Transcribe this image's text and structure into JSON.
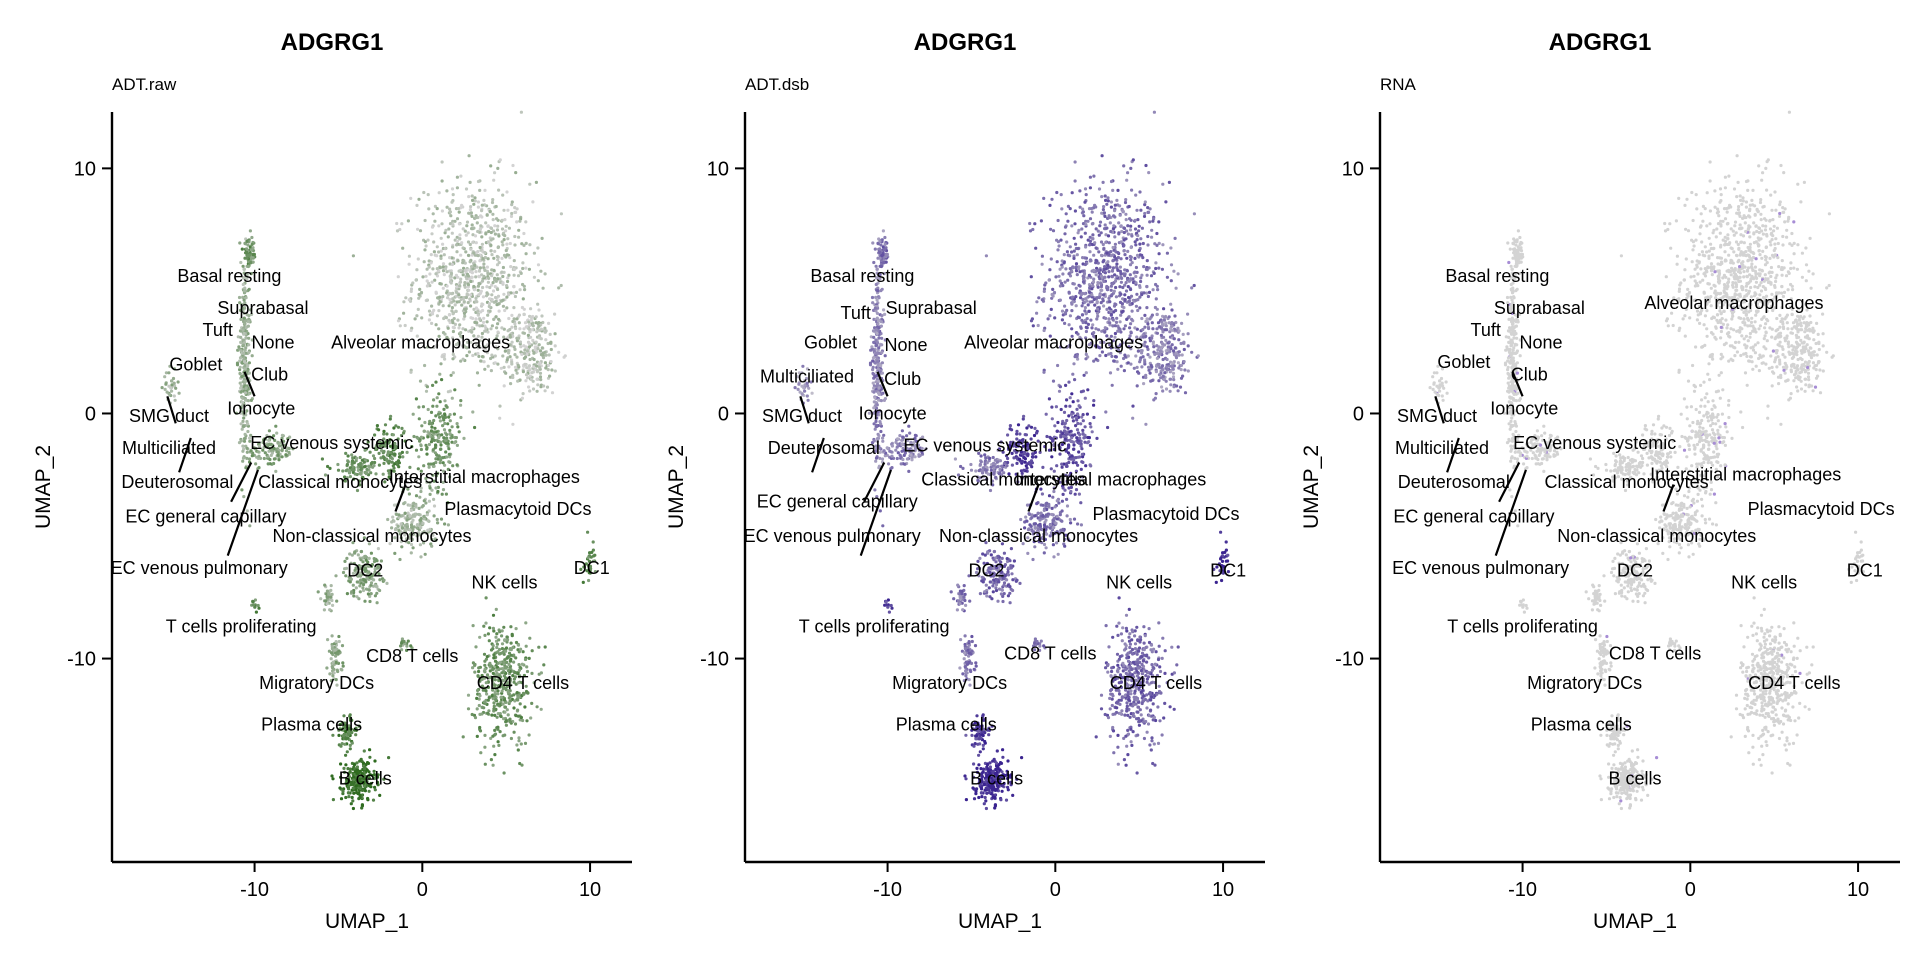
{
  "chart_data": [
    {
      "type": "scatter",
      "title": "ADGRG1",
      "subtitle": "ADT.raw",
      "xlabel": "UMAP_1",
      "ylabel": "UMAP_2",
      "xlim": [
        -18.5,
        12.5
      ],
      "ylim": [
        -18.3,
        12.3
      ],
      "xticks": [
        -10,
        0,
        10
      ],
      "yticks": [
        10,
        0,
        -10
      ],
      "grid": false,
      "color_low": "#d3d3d3",
      "color_high": "#2e6b1f",
      "labels": [
        {
          "text": "Basal resting",
          "x": -11.5,
          "y": 5.6
        },
        {
          "text": "Suprabasal",
          "x": -9.5,
          "y": 4.3
        },
        {
          "text": "Tuft",
          "x": -12.2,
          "y": 3.4
        },
        {
          "text": "None",
          "x": -8.9,
          "y": 2.9
        },
        {
          "text": "Alveolar macrophages",
          "x": -0.1,
          "y": 2.9
        },
        {
          "text": "Goblet",
          "x": -13.5,
          "y": 2.0
        },
        {
          "text": "Club",
          "x": -9.1,
          "y": 1.6
        },
        {
          "text": "SMG duct",
          "x": -15.1,
          "y": -0.1
        },
        {
          "text": "Ionocyte",
          "x": -9.6,
          "y": 0.2
        },
        {
          "text": "Multiciliated",
          "x": -15.1,
          "y": -1.4
        },
        {
          "text": "EC venous systemic",
          "x": -5.4,
          "y": -1.2
        },
        {
          "text": "Deuterosomal",
          "x": -14.6,
          "y": -2.8
        },
        {
          "text": "Classical monocytes",
          "x": -4.9,
          "y": -2.8
        },
        {
          "text": "Interstitial macrophages",
          "x": 3.7,
          "y": -2.6
        },
        {
          "text": "Plasmacytoid DCs",
          "x": 5.7,
          "y": -3.9
        },
        {
          "text": "EC general capillary",
          "x": -12.9,
          "y": -4.2
        },
        {
          "text": "Non-classical monocytes",
          "x": -3.0,
          "y": -5.0
        },
        {
          "text": "EC venous pulmonary",
          "x": -13.3,
          "y": -6.3
        },
        {
          "text": "DC2",
          "x": -3.4,
          "y": -6.4
        },
        {
          "text": "DC1",
          "x": 10.1,
          "y": -6.3
        },
        {
          "text": "NK cells",
          "x": 4.9,
          "y": -6.9
        },
        {
          "text": "T cells proliferating",
          "x": -10.8,
          "y": -8.7
        },
        {
          "text": "CD8 T cells",
          "x": -0.6,
          "y": -9.9
        },
        {
          "text": "Migratory DCs",
          "x": -6.3,
          "y": -11.0
        },
        {
          "text": "CD4 T cells",
          "x": 6.0,
          "y": -11.0
        },
        {
          "text": "Plasma cells",
          "x": -6.6,
          "y": -12.7
        },
        {
          "text": "B cells",
          "x": -3.4,
          "y": -14.9
        }
      ]
    },
    {
      "type": "scatter",
      "title": "ADGRG1",
      "subtitle": "ADT.dsb",
      "xlabel": "UMAP_1",
      "ylabel": "UMAP_2",
      "xlim": [
        -18.5,
        12.5
      ],
      "ylim": [
        -18.3,
        12.3
      ],
      "xticks": [
        -10,
        0,
        10
      ],
      "yticks": [
        10,
        0,
        -10
      ],
      "grid": false,
      "color_low": "#d3d3d3",
      "color_high": "#3a2390",
      "labels": [
        {
          "text": "Basal resting",
          "x": -11.5,
          "y": 5.6
        },
        {
          "text": "Suprabasal",
          "x": -7.4,
          "y": 4.3
        },
        {
          "text": "Tuft",
          "x": -11.9,
          "y": 4.1
        },
        {
          "text": "Goblet",
          "x": -13.4,
          "y": 2.9
        },
        {
          "text": "None",
          "x": -8.9,
          "y": 2.8
        },
        {
          "text": "Alveolar macrophages",
          "x": -0.1,
          "y": 2.9
        },
        {
          "text": "Multiciliated",
          "x": -14.8,
          "y": 1.5
        },
        {
          "text": "Club",
          "x": -9.1,
          "y": 1.4
        },
        {
          "text": "SMG duct",
          "x": -15.1,
          "y": -0.1
        },
        {
          "text": "Ionocyte",
          "x": -9.7,
          "y": 0.0
        },
        {
          "text": "EC venous systemic",
          "x": -4.2,
          "y": -1.3
        },
        {
          "text": "Deuterosomal",
          "x": -13.8,
          "y": -1.4
        },
        {
          "text": "Classical monocytes",
          "x": -3.1,
          "y": -2.7
        },
        {
          "text": "Interstitial macrophages",
          "x": 3.3,
          "y": -2.7
        },
        {
          "text": "Plasmacytoid DCs",
          "x": 6.6,
          "y": -4.1
        },
        {
          "text": "EC general capillary",
          "x": -13.0,
          "y": -3.6
        },
        {
          "text": "EC venous pulmonary",
          "x": -13.3,
          "y": -5.0
        },
        {
          "text": "Non-classical monocytes",
          "x": -1.0,
          "y": -5.0
        },
        {
          "text": "DC2",
          "x": -4.1,
          "y": -6.4
        },
        {
          "text": "DC1",
          "x": 10.3,
          "y": -6.4
        },
        {
          "text": "NK cells",
          "x": 5.0,
          "y": -6.9
        },
        {
          "text": "T cells proliferating",
          "x": -10.8,
          "y": -8.7
        },
        {
          "text": "CD8 T cells",
          "x": -0.3,
          "y": -9.8
        },
        {
          "text": "Migratory DCs",
          "x": -6.3,
          "y": -11.0
        },
        {
          "text": "CD4 T cells",
          "x": 6.0,
          "y": -11.0
        },
        {
          "text": "Plasma cells",
          "x": -6.5,
          "y": -12.7
        },
        {
          "text": "B cells",
          "x": -3.5,
          "y": -14.9
        }
      ]
    },
    {
      "type": "scatter",
      "title": "ADGRG1",
      "subtitle": "RNA",
      "xlabel": "UMAP_1",
      "ylabel": "UMAP_2",
      "xlim": [
        -18.5,
        12.5
      ],
      "ylim": [
        -18.3,
        12.3
      ],
      "xticks": [
        -10,
        0,
        10
      ],
      "yticks": [
        10,
        0,
        -10
      ],
      "grid": false,
      "color_low": "#d3d3d3",
      "color_high": "#8a5fd6",
      "labels": [
        {
          "text": "Basal resting",
          "x": -11.5,
          "y": 5.6
        },
        {
          "text": "Suprabasal",
          "x": -9.0,
          "y": 4.3
        },
        {
          "text": "Alveolar macrophages",
          "x": 2.6,
          "y": 4.5
        },
        {
          "text": "Tuft",
          "x": -12.2,
          "y": 3.4
        },
        {
          "text": "None",
          "x": -8.9,
          "y": 2.9
        },
        {
          "text": "Goblet",
          "x": -13.5,
          "y": 2.1
        },
        {
          "text": "Club",
          "x": -9.6,
          "y": 1.6
        },
        {
          "text": "SMG duct",
          "x": -15.1,
          "y": -0.1
        },
        {
          "text": "Ionocyte",
          "x": -9.9,
          "y": 0.2
        },
        {
          "text": "Multiciliated",
          "x": -14.8,
          "y": -1.4
        },
        {
          "text": "EC venous systemic",
          "x": -5.7,
          "y": -1.2
        },
        {
          "text": "Deuterosomal",
          "x": -14.1,
          "y": -2.8
        },
        {
          "text": "Classical monocytes",
          "x": -3.8,
          "y": -2.8
        },
        {
          "text": "Interstitial macrophages",
          "x": 3.3,
          "y": -2.5
        },
        {
          "text": "Plasmacytoid DCs",
          "x": 7.8,
          "y": -3.9
        },
        {
          "text": "EC general capillary",
          "x": -12.9,
          "y": -4.2
        },
        {
          "text": "Non-classical monocytes",
          "x": -2.0,
          "y": -5.0
        },
        {
          "text": "EC venous pulmonary",
          "x": -12.5,
          "y": -6.3
        },
        {
          "text": "DC2",
          "x": -3.3,
          "y": -6.4
        },
        {
          "text": "DC1",
          "x": 10.4,
          "y": -6.4
        },
        {
          "text": "NK cells",
          "x": 4.4,
          "y": -6.9
        },
        {
          "text": "T cells proliferating",
          "x": -10.0,
          "y": -8.7
        },
        {
          "text": "CD8 T cells",
          "x": -2.1,
          "y": -9.8
        },
        {
          "text": "Migratory DCs",
          "x": -6.3,
          "y": -11.0
        },
        {
          "text": "CD4 T cells",
          "x": 6.2,
          "y": -11.0
        },
        {
          "text": "Plasma cells",
          "x": -6.5,
          "y": -12.7
        },
        {
          "text": "B cells",
          "x": -3.3,
          "y": -14.9
        }
      ]
    }
  ]
}
